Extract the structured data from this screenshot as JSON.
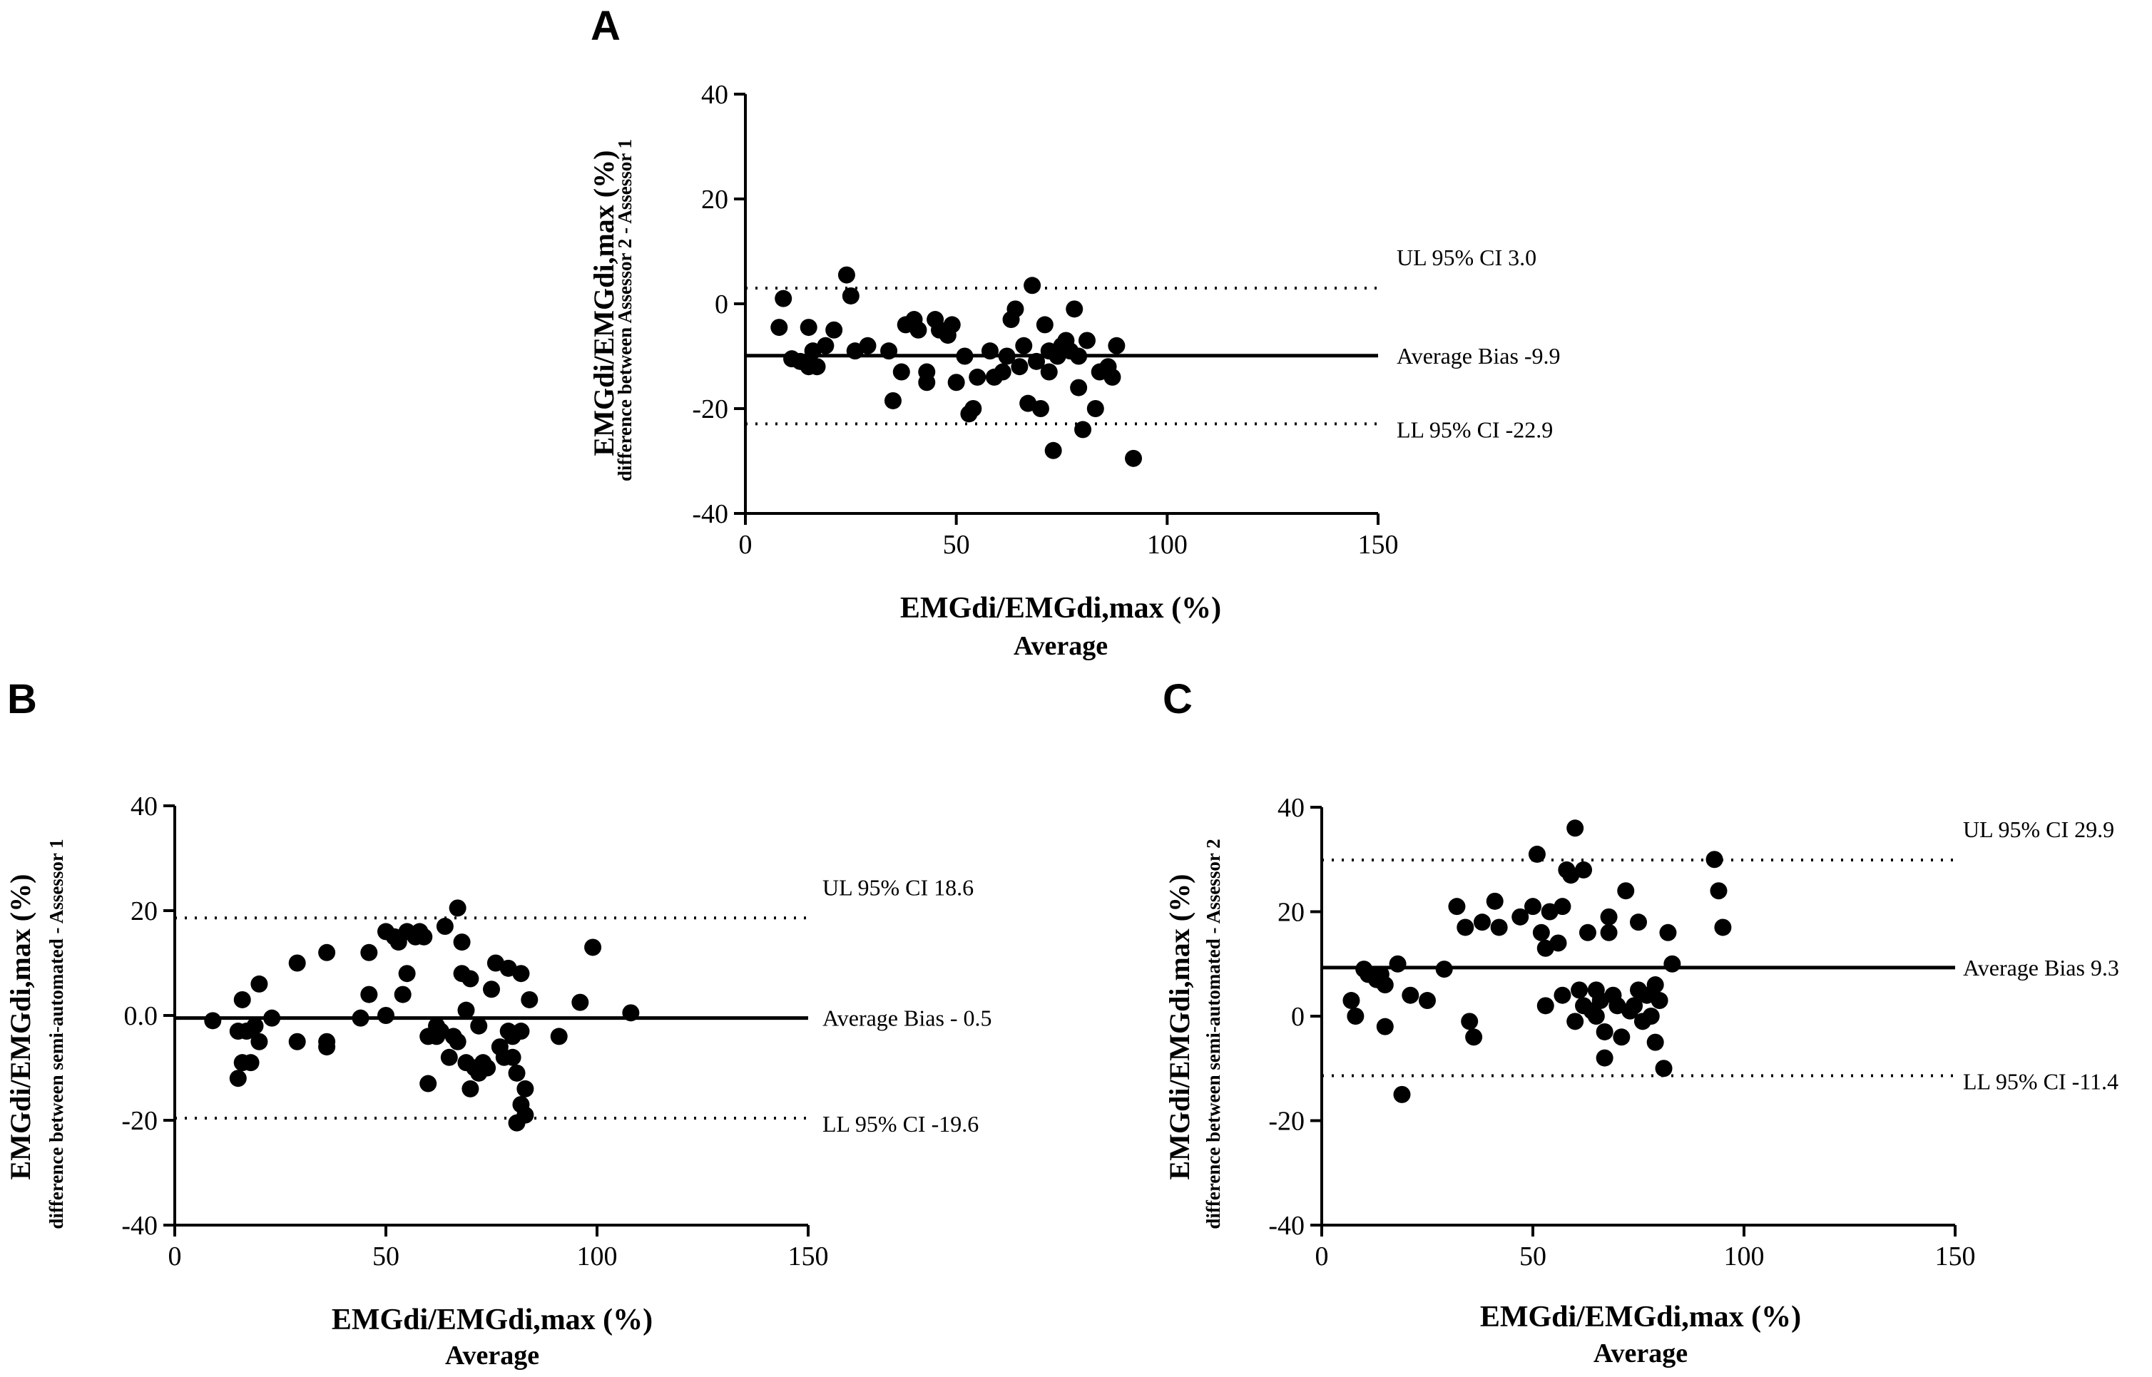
{
  "chart_data": [
    {
      "type": "scatter",
      "panel": "A",
      "ylabel": "EMGdi/EMGdi,max (%)",
      "ylabel_sub": "difference between Assessor 2 - Assessor 1",
      "xlabel": "EMGdi/EMGdi,max (%)",
      "xlabel_sub": "Average",
      "xlim": [
        0,
        150
      ],
      "ylim": [
        -40,
        40
      ],
      "xticks": [
        0,
        50,
        100,
        150
      ],
      "xtick_labels": [
        "0",
        "50",
        "100",
        "150"
      ],
      "yticks": [
        -40,
        -20,
        0,
        20,
        40
      ],
      "ytick_labels": [
        "-40",
        "-20",
        "0",
        "20",
        "40"
      ],
      "lines": [
        {
          "label": "UL 95% CI 3.0",
          "value": 3.0,
          "style": "dotted"
        },
        {
          "label": "Average Bias  -9.9",
          "value": -9.9,
          "style": "solid"
        },
        {
          "label": "LL 95% CI -22.9",
          "value": -22.9,
          "style": "dotted"
        }
      ],
      "points": [
        [
          8,
          -4.5
        ],
        [
          9,
          1
        ],
        [
          11,
          -10.5
        ],
        [
          13,
          -11
        ],
        [
          15,
          -4.5
        ],
        [
          15,
          -12
        ],
        [
          16,
          -9
        ],
        [
          17,
          -12
        ],
        [
          19,
          -8
        ],
        [
          21,
          -5
        ],
        [
          24,
          5.5
        ],
        [
          25,
          1.5
        ],
        [
          26,
          -9
        ],
        [
          29,
          -8
        ],
        [
          34,
          -9
        ],
        [
          35,
          -18.5
        ],
        [
          37,
          -13
        ],
        [
          38,
          -4
        ],
        [
          40,
          -3
        ],
        [
          41,
          -5
        ],
        [
          43,
          -15
        ],
        [
          43,
          -13
        ],
        [
          45,
          -3
        ],
        [
          46,
          -5
        ],
        [
          48,
          -6
        ],
        [
          49,
          -4
        ],
        [
          50,
          -15
        ],
        [
          52,
          -10
        ],
        [
          53,
          -21
        ],
        [
          54,
          -20
        ],
        [
          55,
          -14
        ],
        [
          58,
          -9
        ],
        [
          59,
          -14
        ],
        [
          61,
          -13
        ],
        [
          62,
          -10
        ],
        [
          63,
          -3
        ],
        [
          64,
          -1
        ],
        [
          65,
          -12
        ],
        [
          66,
          -8
        ],
        [
          67,
          -19
        ],
        [
          68,
          3.5
        ],
        [
          69,
          -11
        ],
        [
          70,
          -20
        ],
        [
          71,
          -4
        ],
        [
          72,
          -9
        ],
        [
          72,
          -13
        ],
        [
          73,
          -28
        ],
        [
          74,
          -10
        ],
        [
          75,
          -8
        ],
        [
          76,
          -7
        ],
        [
          77,
          -9
        ],
        [
          78,
          -1
        ],
        [
          79,
          -10
        ],
        [
          79,
          -16
        ],
        [
          80,
          -24
        ],
        [
          81,
          -7
        ],
        [
          83,
          -20
        ],
        [
          84,
          -13
        ],
        [
          86,
          -12
        ],
        [
          87,
          -14
        ],
        [
          88,
          -8
        ],
        [
          92,
          -29.5
        ]
      ]
    },
    {
      "type": "scatter",
      "panel": "B",
      "ylabel": "EMGdi/EMGdi,max (%)",
      "ylabel_sub": "difference between semi-automated - Assessor 1",
      "xlabel": "EMGdi/EMGdi,max (%)",
      "xlabel_sub": "Average",
      "xlim": [
        0,
        150
      ],
      "ylim": [
        -40,
        40
      ],
      "xticks": [
        0,
        50,
        100,
        150
      ],
      "xtick_labels": [
        "0",
        "50",
        "100",
        "150"
      ],
      "yticks": [
        -40,
        -20,
        0,
        20,
        40
      ],
      "ytick_labels": [
        "-40",
        "-20",
        "0.0",
        "20",
        "40"
      ],
      "lines": [
        {
          "label": "UL 95% CI 18.6",
          "value": 18.6,
          "style": "dotted"
        },
        {
          "label": "Average Bias - 0.5",
          "value": -0.5,
          "style": "solid"
        },
        {
          "label": "LL 95% CI -19.6",
          "value": -19.6,
          "style": "dotted"
        }
      ],
      "points": [
        [
          9,
          -1
        ],
        [
          15,
          -12
        ],
        [
          15,
          -3
        ],
        [
          16,
          3
        ],
        [
          16,
          -9
        ],
        [
          17,
          -3
        ],
        [
          18,
          -9
        ],
        [
          19,
          -2
        ],
        [
          20,
          -5
        ],
        [
          20,
          6
        ],
        [
          23,
          -0.5
        ],
        [
          29,
          -5
        ],
        [
          29,
          10
        ],
        [
          36,
          -5
        ],
        [
          36,
          -6
        ],
        [
          36,
          12
        ],
        [
          44,
          -0.5
        ],
        [
          46,
          4
        ],
        [
          46,
          12
        ],
        [
          50,
          0
        ],
        [
          50,
          16
        ],
        [
          52,
          15
        ],
        [
          53,
          14
        ],
        [
          54,
          4
        ],
        [
          55,
          16
        ],
        [
          55,
          8
        ],
        [
          57,
          15
        ],
        [
          58,
          16
        ],
        [
          59,
          15
        ],
        [
          60,
          -13
        ],
        [
          60,
          -4
        ],
        [
          62,
          -4
        ],
        [
          62,
          -2
        ],
        [
          63,
          -3
        ],
        [
          64,
          17
        ],
        [
          65,
          -8
        ],
        [
          66,
          -4
        ],
        [
          67,
          -5
        ],
        [
          67,
          20.5
        ],
        [
          68,
          8
        ],
        [
          68,
          14
        ],
        [
          69,
          1
        ],
        [
          69,
          -9
        ],
        [
          70,
          -14
        ],
        [
          70,
          7
        ],
        [
          71,
          -10
        ],
        [
          72,
          -11
        ],
        [
          72,
          -2
        ],
        [
          73,
          -9
        ],
        [
          74,
          -10
        ],
        [
          75,
          5
        ],
        [
          76,
          10
        ],
        [
          77,
          -6
        ],
        [
          78,
          -8
        ],
        [
          79,
          -3
        ],
        [
          79,
          9
        ],
        [
          80,
          -4
        ],
        [
          80,
          -8
        ],
        [
          81,
          -11
        ],
        [
          81,
          -20.5
        ],
        [
          82,
          -3
        ],
        [
          82,
          8
        ],
        [
          82,
          -17
        ],
        [
          83,
          -14
        ],
        [
          83,
          -19
        ],
        [
          84,
          3
        ],
        [
          91,
          -4
        ],
        [
          96,
          2.5
        ],
        [
          99,
          13
        ],
        [
          108,
          0.5
        ]
      ]
    },
    {
      "type": "scatter",
      "panel": "C",
      "ylabel": "EMGdi/EMGdi,max (%)",
      "ylabel_sub": "difference between semi-automated - Assessor 2",
      "xlabel": "EMGdi/EMGdi,max (%)",
      "xlabel_sub": "Average",
      "xlim": [
        0,
        150
      ],
      "ylim": [
        -40,
        40
      ],
      "xticks": [
        0,
        50,
        100,
        150
      ],
      "xtick_labels": [
        "0",
        "50",
        "100",
        "150"
      ],
      "yticks": [
        -40,
        -20,
        0,
        20,
        40
      ],
      "ytick_labels": [
        "-40",
        "-20",
        "0",
        "20",
        "40"
      ],
      "lines": [
        {
          "label": "UL 95% CI 29.9",
          "value": 29.9,
          "style": "dotted"
        },
        {
          "label": "Average Bias  9.3",
          "value": 9.3,
          "style": "solid"
        },
        {
          "label": "LL 95% CI -11.4",
          "value": -11.4,
          "style": "dotted"
        }
      ],
      "points": [
        [
          7,
          3
        ],
        [
          8,
          0
        ],
        [
          10,
          9
        ],
        [
          11,
          8
        ],
        [
          13,
          7
        ],
        [
          14,
          8
        ],
        [
          15,
          -2
        ],
        [
          15,
          6
        ],
        [
          18,
          10
        ],
        [
          19,
          -15
        ],
        [
          21,
          4
        ],
        [
          25,
          3
        ],
        [
          29,
          9
        ],
        [
          32,
          21
        ],
        [
          34,
          17
        ],
        [
          35,
          -1
        ],
        [
          36,
          -4
        ],
        [
          38,
          18
        ],
        [
          41,
          22
        ],
        [
          42,
          17
        ],
        [
          47,
          19
        ],
        [
          50,
          21
        ],
        [
          51,
          31
        ],
        [
          52,
          16
        ],
        [
          53,
          13
        ],
        [
          53,
          2
        ],
        [
          54,
          20
        ],
        [
          56,
          14
        ],
        [
          57,
          21
        ],
        [
          57,
          4
        ],
        [
          58,
          28
        ],
        [
          59,
          27
        ],
        [
          60,
          36
        ],
        [
          60,
          -1
        ],
        [
          61,
          5
        ],
        [
          62,
          2
        ],
        [
          62,
          28
        ],
        [
          63,
          16
        ],
        [
          64,
          1
        ],
        [
          65,
          5
        ],
        [
          65,
          0
        ],
        [
          66,
          3
        ],
        [
          67,
          -3
        ],
        [
          67,
          -8
        ],
        [
          68,
          19
        ],
        [
          68,
          16
        ],
        [
          69,
          4
        ],
        [
          70,
          2
        ],
        [
          71,
          -4
        ],
        [
          72,
          24
        ],
        [
          73,
          1
        ],
        [
          74,
          2
        ],
        [
          75,
          18
        ],
        [
          75,
          5
        ],
        [
          76,
          -1
        ],
        [
          77,
          4
        ],
        [
          78,
          0
        ],
        [
          79,
          6
        ],
        [
          79,
          -5
        ],
        [
          80,
          3
        ],
        [
          81,
          -10
        ],
        [
          82,
          16
        ],
        [
          83,
          10
        ],
        [
          94,
          24
        ],
        [
          95,
          17
        ],
        [
          93,
          30
        ]
      ]
    }
  ]
}
